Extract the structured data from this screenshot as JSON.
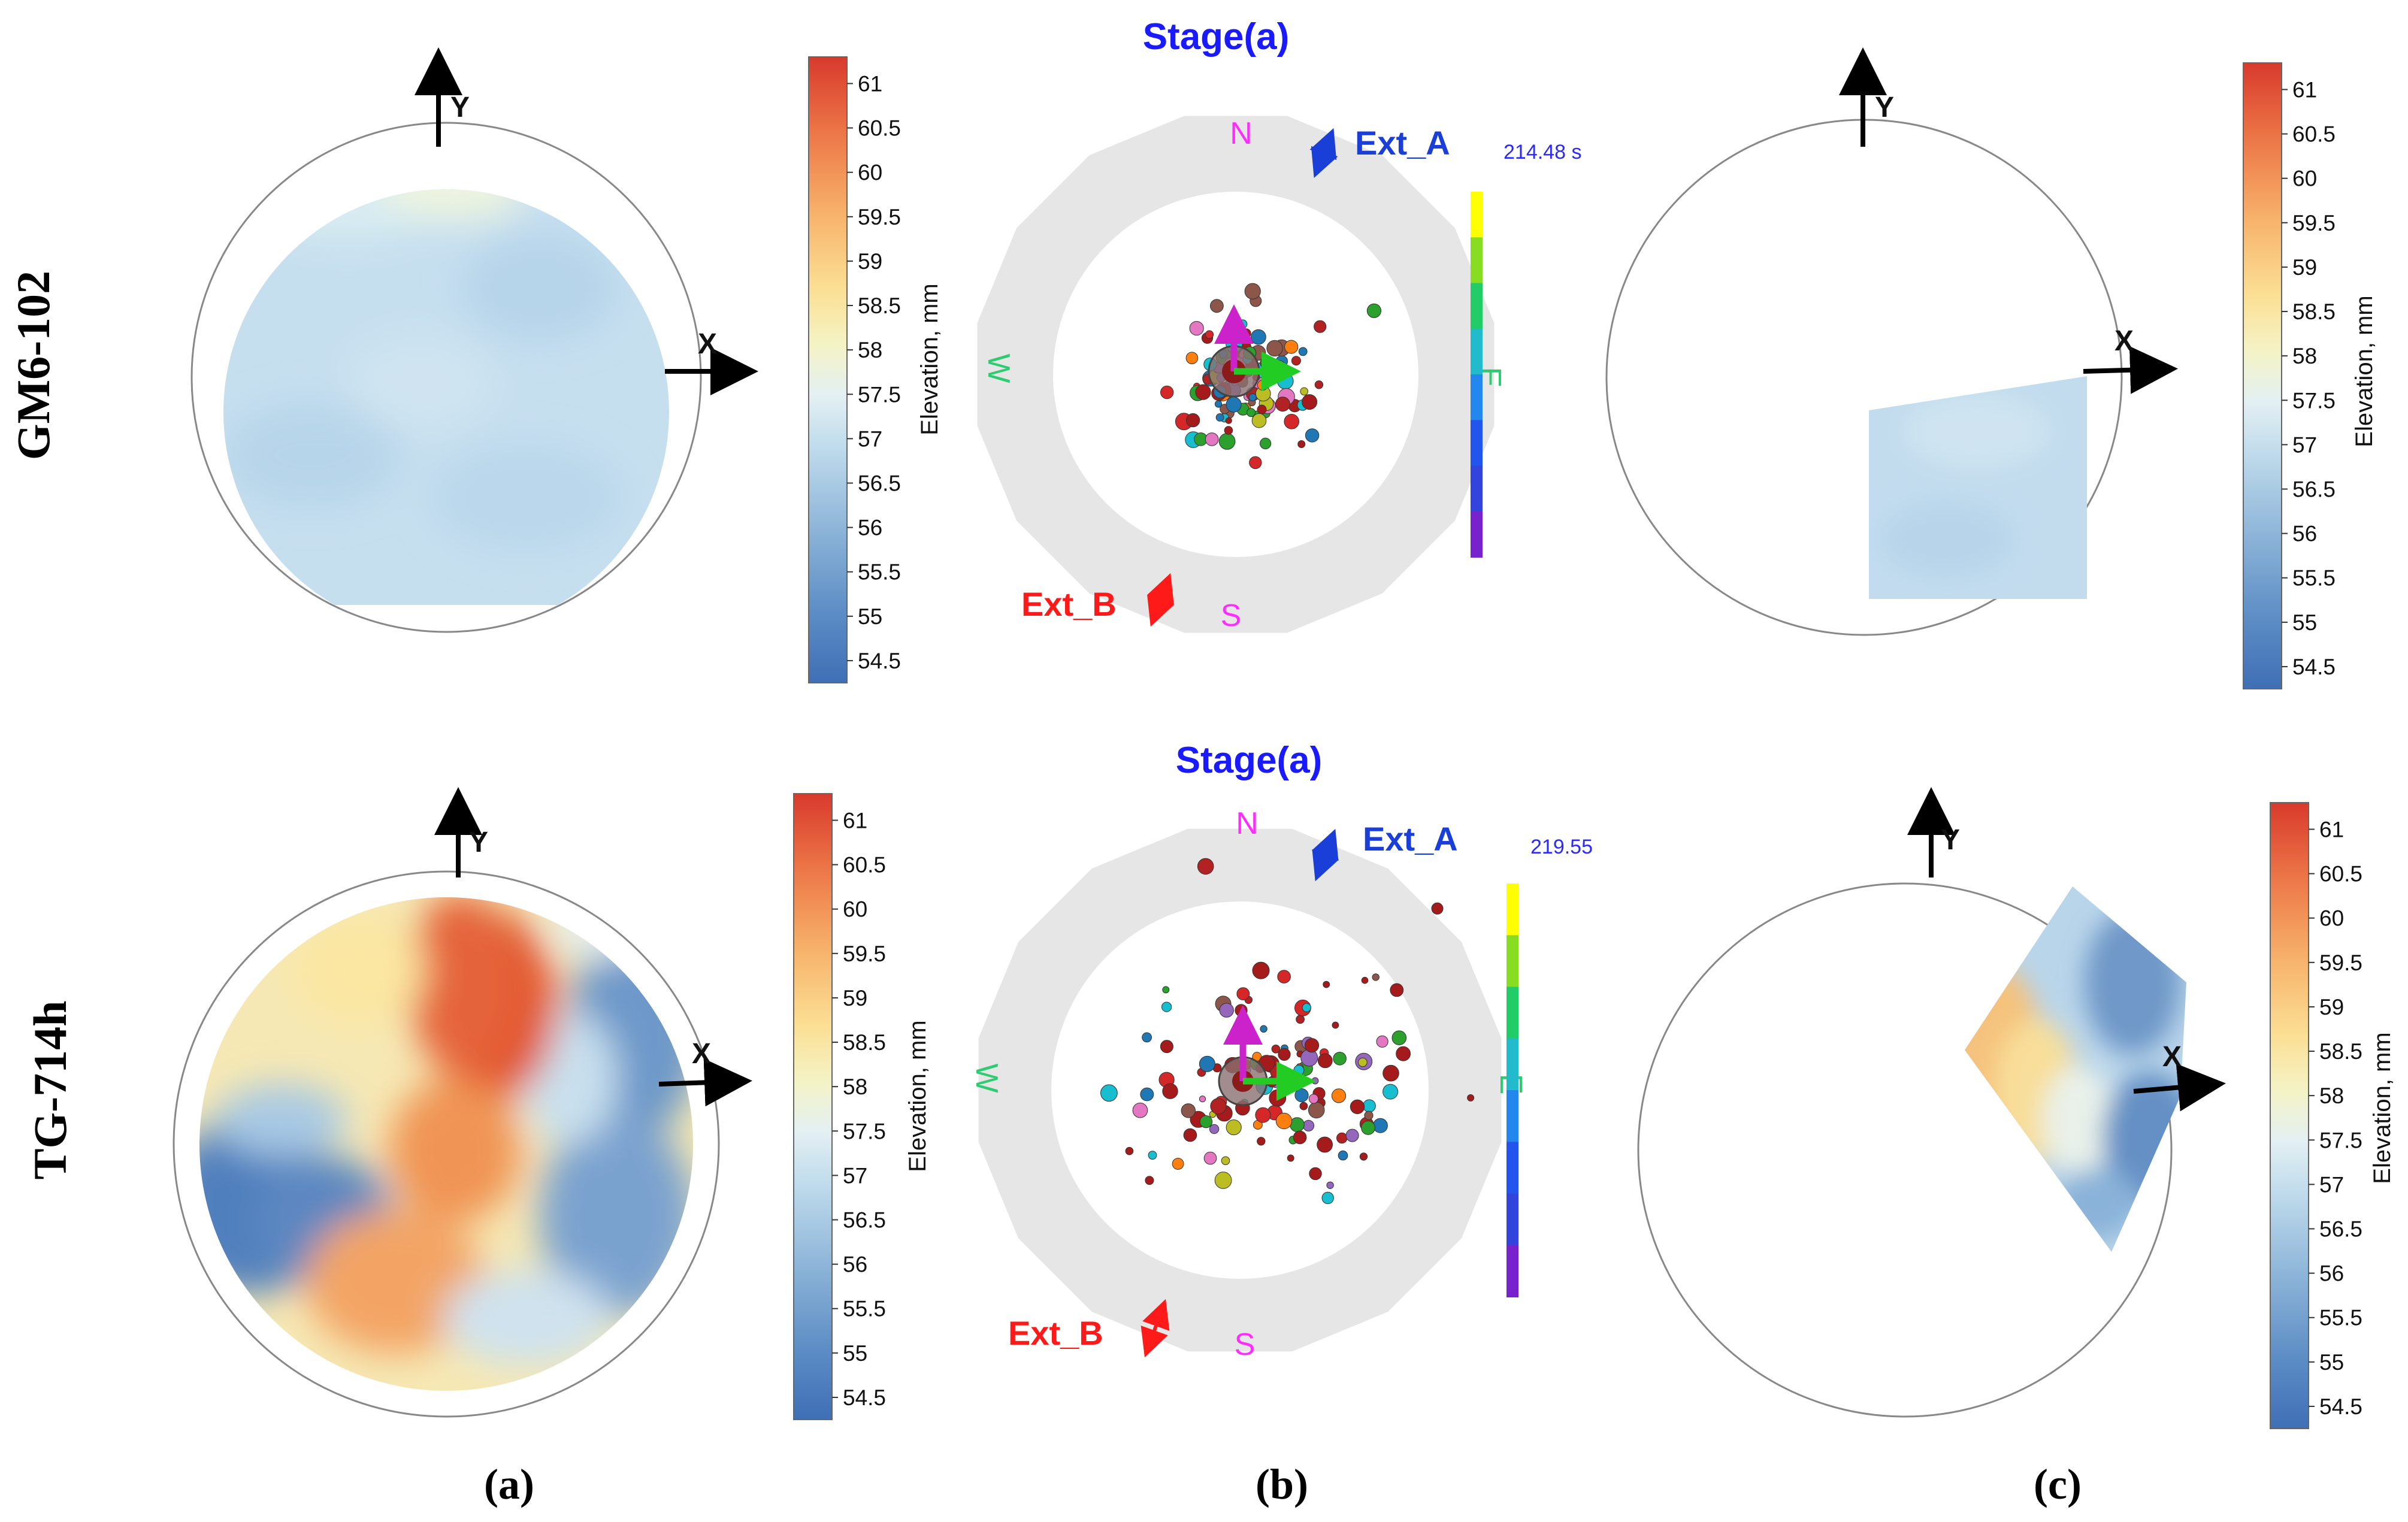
{
  "rows": [
    {
      "label": "GM6-102",
      "stage_title": "Stage(a)",
      "time_readout": "214.48 s",
      "ext_a": "Ext_A",
      "ext_b": "Ext_B"
    },
    {
      "label": "TG-714h",
      "stage_title": "Stage(a)",
      "time_readout": "219.55",
      "ext_a": "Ext_A",
      "ext_b": "Ext_B"
    }
  ],
  "axes": {
    "x": "X",
    "y": "Y"
  },
  "compass": {
    "n": "N",
    "s": "S",
    "e": "E",
    "w": "W"
  },
  "colorbar": {
    "label": "Elevation, mm",
    "ticks": [
      "61",
      "60.5",
      "60",
      "59.5",
      "59",
      "58.5",
      "58",
      "57.5",
      "57",
      "56.5",
      "56",
      "55.5",
      "55",
      "54.5"
    ],
    "range": [
      54.25,
      61.3
    ]
  },
  "panel_labels": [
    "(a)",
    "(b)",
    "(c)"
  ],
  "colors": {
    "stage_title": "#1a1aff",
    "ext_a": "#1a3fd9",
    "ext_b": "#ff1a1a",
    "compass_ns": "#ff2bff",
    "compass_ew": "#2ecc71",
    "ring": "#e6e6e6",
    "arrow_y": "#cc22cc",
    "arrow_x": "#22cc22",
    "readout": "#2a2aff"
  }
}
